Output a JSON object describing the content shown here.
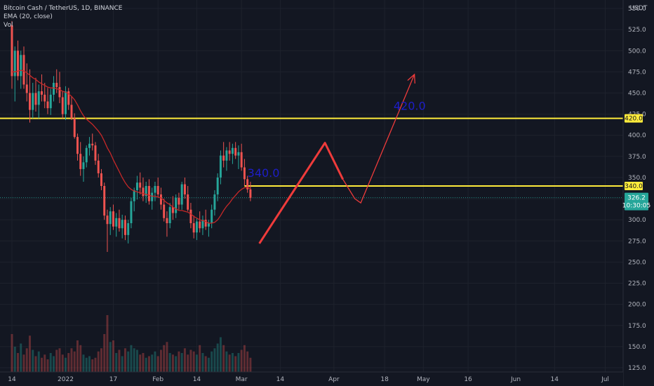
{
  "header": {
    "symbol_line": "Bitcoin Cash / TetherUS, 1D, BINANCE",
    "ema_line": "EMA (20, close)",
    "vol_line": "Vol"
  },
  "chart_data": {
    "type": "candlestick",
    "currency": "USDT",
    "y_axis": {
      "ticks": [
        550.0,
        525.0,
        500.0,
        475.0,
        450.0,
        425.0,
        400.0,
        375.0,
        350.0,
        325.0,
        300.0,
        275.0,
        250.0,
        225.0,
        200.0,
        175.0,
        150.0,
        125.0
      ],
      "tick_labels": [
        "550.0",
        "525.0",
        "500.0",
        "475.0",
        "450.0",
        "425.0",
        "400.0",
        "375.0",
        "350.0",
        "325.0",
        "300.0",
        "275.0",
        "250.0",
        "225.0",
        "200.0",
        "175.0",
        "150.0",
        "125.0"
      ],
      "range": [
        120,
        560
      ]
    },
    "x_axis": {
      "tick_labels": [
        "14",
        "2022",
        "17",
        "Feb",
        "14",
        "Mar",
        "14",
        "Apr",
        "18",
        "May",
        "16",
        "Jun",
        "14",
        "Jul"
      ],
      "tick_days": [
        -18,
        0,
        16,
        31,
        44,
        59,
        72,
        90,
        107,
        120,
        135,
        151,
        164,
        181
      ],
      "day_range": [
        -22,
        187
      ],
      "date_origin": "2022-01-01"
    },
    "candles_start": "2021-12-14",
    "candles_ohlc": [
      [
        530,
        535,
        455,
        470
      ],
      [
        470,
        505,
        440,
        500
      ],
      [
        500,
        512,
        465,
        470
      ],
      [
        470,
        500,
        455,
        495
      ],
      [
        495,
        505,
        455,
        460
      ],
      [
        460,
        485,
        440,
        450
      ],
      [
        450,
        478,
        415,
        430
      ],
      [
        430,
        462,
        420,
        450
      ],
      [
        450,
        468,
        428,
        436
      ],
      [
        436,
        460,
        420,
        452
      ],
      [
        452,
        472,
        440,
        448
      ],
      [
        448,
        462,
        432,
        440
      ],
      [
        440,
        456,
        425,
        432
      ],
      [
        432,
        455,
        424,
        448
      ],
      [
        448,
        470,
        440,
        462
      ],
      [
        462,
        478,
        450,
        457
      ],
      [
        457,
        475,
        438,
        445
      ],
      [
        445,
        452,
        420,
        425
      ],
      [
        425,
        458,
        418,
        452
      ],
      [
        452,
        456,
        430,
        436
      ],
      [
        436,
        446,
        418,
        420
      ],
      [
        420,
        426,
        396,
        398
      ],
      [
        398,
        402,
        370,
        378
      ],
      [
        378,
        392,
        352,
        360
      ],
      [
        360,
        375,
        345,
        368
      ],
      [
        368,
        388,
        362,
        385
      ],
      [
        385,
        398,
        376,
        390
      ],
      [
        390,
        402,
        382,
        388
      ],
      [
        388,
        392,
        365,
        370
      ],
      [
        370,
        378,
        350,
        355
      ],
      [
        355,
        360,
        335,
        340
      ],
      [
        340,
        344,
        300,
        305
      ],
      [
        305,
        312,
        262,
        295
      ],
      [
        295,
        315,
        282,
        310
      ],
      [
        310,
        318,
        288,
        292
      ],
      [
        292,
        308,
        280,
        302
      ],
      [
        302,
        312,
        286,
        290
      ],
      [
        290,
        306,
        278,
        300
      ],
      [
        300,
        305,
        276,
        282
      ],
      [
        282,
        300,
        272,
        296
      ],
      [
        296,
        326,
        290,
        322
      ],
      [
        322,
        338,
        310,
        335
      ],
      [
        335,
        352,
        324,
        344
      ],
      [
        344,
        356,
        330,
        338
      ],
      [
        338,
        350,
        322,
        328
      ],
      [
        328,
        345,
        320,
        340
      ],
      [
        340,
        348,
        318,
        322
      ],
      [
        322,
        338,
        312,
        332
      ],
      [
        332,
        345,
        322,
        340
      ],
      [
        340,
        350,
        326,
        330
      ],
      [
        330,
        338,
        312,
        318
      ],
      [
        318,
        325,
        298,
        302
      ],
      [
        302,
        310,
        280,
        296
      ],
      [
        296,
        320,
        290,
        315
      ],
      [
        315,
        328,
        300,
        308
      ],
      [
        308,
        330,
        302,
        326
      ],
      [
        326,
        332,
        312,
        318
      ],
      [
        318,
        345,
        312,
        342
      ],
      [
        342,
        350,
        325,
        330
      ],
      [
        330,
        340,
        310,
        312
      ],
      [
        312,
        320,
        290,
        296
      ],
      [
        296,
        305,
        278,
        285
      ],
      [
        285,
        302,
        276,
        298
      ],
      [
        298,
        310,
        285,
        290
      ],
      [
        290,
        305,
        282,
        300
      ],
      [
        300,
        312,
        288,
        292
      ],
      [
        292,
        300,
        280,
        296
      ],
      [
        296,
        318,
        290,
        312
      ],
      [
        312,
        335,
        305,
        330
      ],
      [
        330,
        355,
        322,
        350
      ],
      [
        350,
        382,
        342,
        376
      ],
      [
        376,
        392,
        362,
        370
      ],
      [
        370,
        386,
        358,
        382
      ],
      [
        382,
        392,
        370,
        378
      ],
      [
        378,
        390,
        366,
        385
      ],
      [
        385,
        392,
        372,
        376
      ],
      [
        376,
        388,
        360,
        380
      ],
      [
        380,
        390,
        358,
        362
      ],
      [
        362,
        372,
        340,
        348
      ],
      [
        348,
        352,
        332,
        336
      ],
      [
        336,
        345,
        322,
        326
      ]
    ],
    "ema": {
      "name": "EMA (20, close)",
      "values": [
        475,
        475,
        476,
        477,
        476,
        474,
        471,
        468,
        466,
        463,
        461,
        459,
        457,
        456,
        456,
        455,
        454,
        452,
        451,
        449,
        446,
        442,
        436,
        429,
        423,
        419,
        416,
        413,
        409,
        405,
        400,
        393,
        385,
        379,
        371,
        364,
        357,
        350,
        344,
        339,
        336,
        334,
        333,
        332,
        331,
        330,
        329,
        328,
        328,
        327,
        326,
        323,
        320,
        318,
        315,
        313,
        311,
        311,
        310,
        309,
        307,
        304,
        302,
        300,
        299,
        298,
        296,
        296,
        297,
        300,
        305,
        311,
        316,
        320,
        325,
        329,
        333,
        336,
        338,
        338,
        337
      ]
    },
    "volume": [
      48,
      32,
      24,
      36,
      22,
      30,
      46,
      28,
      20,
      26,
      18,
      22,
      16,
      24,
      20,
      28,
      30,
      22,
      18,
      24,
      30,
      26,
      40,
      34,
      22,
      18,
      20,
      16,
      18,
      26,
      30,
      48,
      72,
      38,
      40,
      24,
      28,
      20,
      30,
      26,
      34,
      30,
      28,
      22,
      24,
      18,
      20,
      22,
      26,
      20,
      28,
      34,
      38,
      24,
      22,
      20,
      26,
      24,
      30,
      22,
      28,
      26,
      22,
      34,
      24,
      20,
      18,
      26,
      30,
      36,
      44,
      34,
      26,
      22,
      24,
      20,
      24,
      28,
      34,
      26,
      18
    ],
    "levels": [
      {
        "price": 420.0,
        "label": "420.0",
        "color": "#ffeb3b",
        "start_day": -22
      },
      {
        "price": 340.0,
        "label": "340.0",
        "color": "#ffeb3b",
        "start_day": 60
      }
    ],
    "current_price": {
      "price": 326.2,
      "label": "326.2",
      "countdown": "10:30:05",
      "color": "#26a69a"
    },
    "annotations": [
      {
        "text": "340.0",
        "day": 61,
        "price": 351
      },
      {
        "text": "420.0",
        "day": 110,
        "price": 430
      }
    ],
    "projection": {
      "color": "#ef3b3b",
      "bold_path": [
        [
          65,
          272
        ],
        [
          87,
          391
        ],
        [
          93,
          348
        ]
      ],
      "thin_path": [
        [
          93,
          348
        ],
        [
          97,
          325
        ],
        [
          99,
          320
        ],
        [
          117,
          472
        ]
      ],
      "arrow_head": true
    },
    "colors": {
      "up": "#26a69a",
      "down": "#ef5350",
      "ema": "#c62828",
      "background": "#131722",
      "grid": "#1e222d"
    }
  }
}
